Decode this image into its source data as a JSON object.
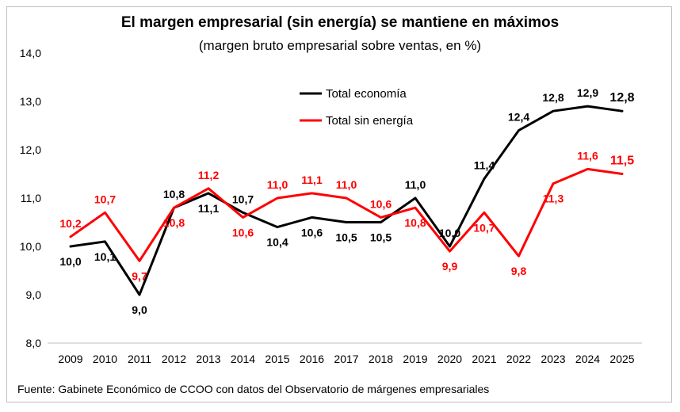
{
  "chart_data": {
    "type": "line",
    "title": "El margen empresarial (sin energía) se mantiene en máximos",
    "subtitle": "(margen bruto empresarial sobre ventas, en %)",
    "source": "Fuente: Gabinete Económico de CCOO con datos del Observatorio de márgenes empresariales",
    "categories": [
      "2009",
      "2010",
      "2011",
      "2012",
      "2013",
      "2014",
      "2015",
      "2016",
      "2017",
      "2018",
      "2019",
      "2020",
      "2021",
      "2022",
      "2023",
      "2024",
      "2025"
    ],
    "ylim": [
      8.0,
      14.0
    ],
    "yticks": [
      "8,0",
      "9,0",
      "10,0",
      "11,0",
      "12,0",
      "13,0",
      "14,0"
    ],
    "grid": false,
    "legend_position": "top-center",
    "series": [
      {
        "name": "Total economía",
        "color": "#000000",
        "values": [
          10.0,
          10.1,
          9.0,
          10.8,
          11.1,
          10.7,
          10.4,
          10.6,
          10.5,
          10.5,
          11.0,
          10.0,
          11.4,
          12.4,
          12.8,
          12.9,
          12.8
        ],
        "labels": [
          "10,0",
          "10,1",
          "9,0",
          "10,8",
          "11,1",
          "10,7",
          "10,4",
          "10,6",
          "10,5",
          "10,5",
          "11,0",
          "10,0",
          "11,4",
          "12,4",
          "12,8",
          "12,9",
          "12,8"
        ]
      },
      {
        "name": "Total sin energía",
        "color": "#ff0000",
        "values": [
          10.2,
          10.7,
          9.7,
          10.8,
          11.2,
          10.6,
          11.0,
          11.1,
          11.0,
          10.6,
          10.8,
          9.9,
          10.7,
          9.8,
          11.3,
          11.6,
          11.5
        ],
        "labels": [
          "10,2",
          "10,7",
          "9,7",
          "10,8",
          "11,2",
          "10,6",
          "11,0",
          "11,1",
          "11,0",
          "10,6",
          "10,8",
          "9,9",
          "10,7",
          "9,8",
          "11,3",
          "11,6",
          "11,5"
        ]
      }
    ]
  }
}
